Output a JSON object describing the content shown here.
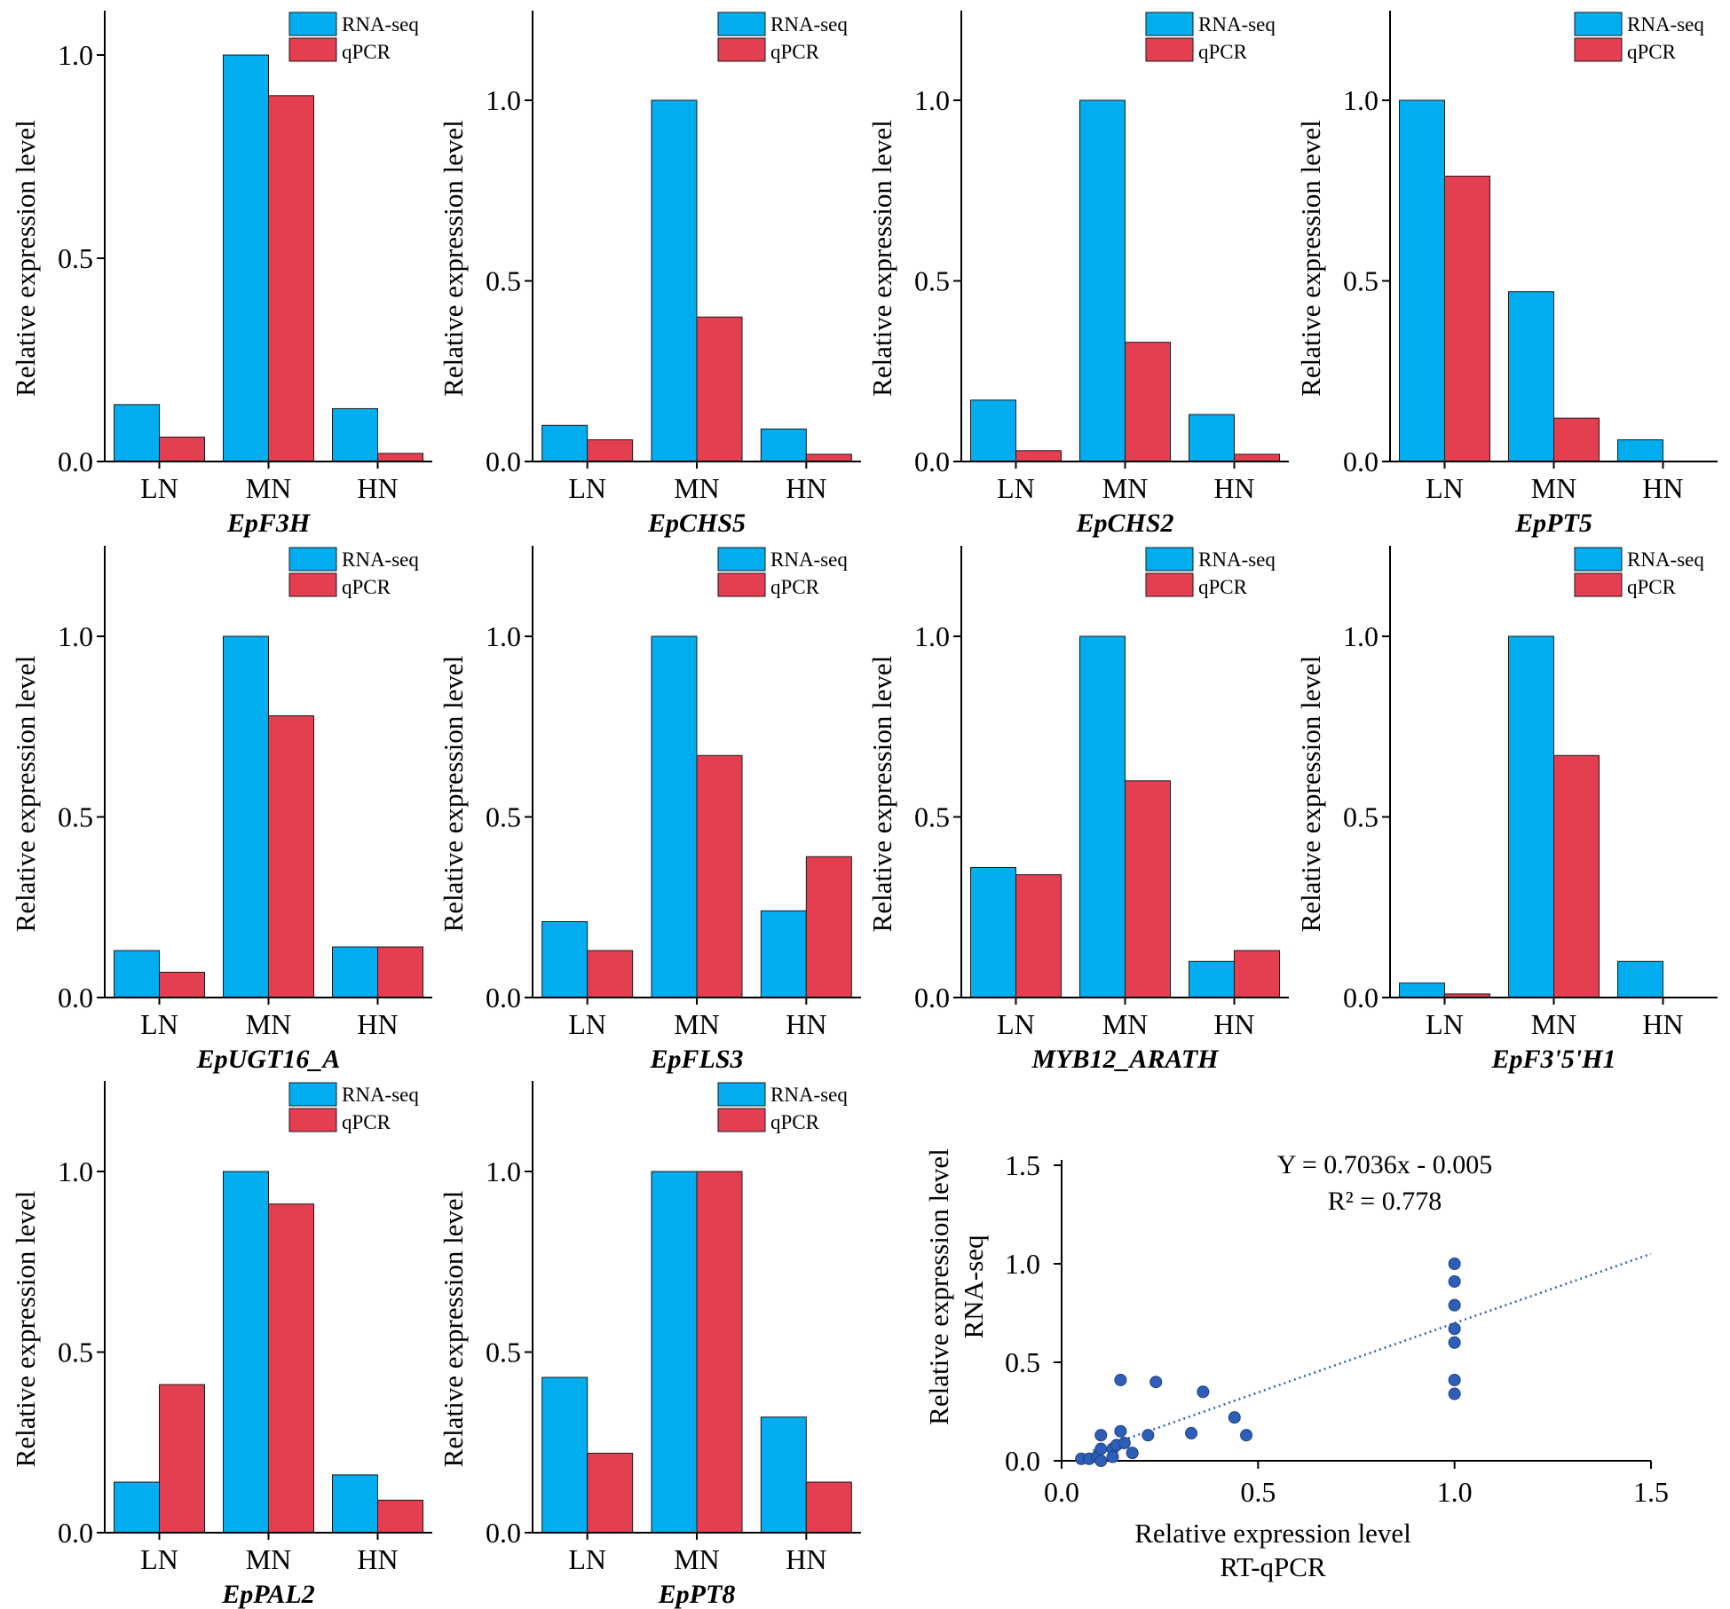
{
  "colors": {
    "rna": "#00ADEF",
    "qpcr": "#E43F51",
    "point": "#2E5FB8",
    "axis": "#000000"
  },
  "legend": {
    "rna": "RNA-seq",
    "qpcr": "qPCR"
  },
  "chart_data": [
    {
      "type": "bar",
      "title": "EpF3H",
      "ylabel": "Relative expression level",
      "categories": [
        "LN",
        "MN",
        "HN"
      ],
      "ylim": [
        0,
        1.1
      ],
      "yticks": [
        "0.0",
        "0.5",
        "1.0"
      ],
      "series": [
        {
          "name": "RNA-seq",
          "values": [
            0.14,
            1.0,
            0.13
          ]
        },
        {
          "name": "qPCR",
          "values": [
            0.06,
            0.9,
            0.02
          ]
        }
      ]
    },
    {
      "type": "bar",
      "title": "EpCHS5",
      "ylabel": "Relative expression level",
      "categories": [
        "LN",
        "MN",
        "HN"
      ],
      "ylim": [
        0,
        1.25
      ],
      "yticks": [
        "0.0",
        "0.5",
        "1.0"
      ],
      "series": [
        {
          "name": "RNA-seq",
          "values": [
            0.1,
            1.0,
            0.09
          ]
        },
        {
          "name": "qPCR",
          "values": [
            0.06,
            0.4,
            0.02
          ]
        }
      ]
    },
    {
      "type": "bar",
      "title": "EpCHS2",
      "ylabel": "Relative expression level",
      "categories": [
        "LN",
        "MN",
        "HN"
      ],
      "ylim": [
        0,
        1.25
      ],
      "yticks": [
        "0.0",
        "0.5",
        "1.0"
      ],
      "series": [
        {
          "name": "RNA-seq",
          "values": [
            0.17,
            1.0,
            0.13
          ]
        },
        {
          "name": "qPCR",
          "values": [
            0.03,
            0.33,
            0.02
          ]
        }
      ]
    },
    {
      "type": "bar",
      "title": "EpPT5",
      "ylabel": "Relative expression level",
      "categories": [
        "LN",
        "MN",
        "HN"
      ],
      "ylim": [
        0,
        1.25
      ],
      "yticks": [
        "0.0",
        "0.5",
        "1.0"
      ],
      "series": [
        {
          "name": "RNA-seq",
          "values": [
            1.0,
            0.47,
            0.06
          ]
        },
        {
          "name": "qPCR",
          "values": [
            0.79,
            0.12,
            0.0
          ]
        }
      ]
    },
    {
      "type": "bar",
      "title": "EpUGT16_A",
      "ylabel": "Relative expression level",
      "categories": [
        "LN",
        "MN",
        "HN"
      ],
      "ylim": [
        0,
        1.25
      ],
      "yticks": [
        "0.0",
        "0.5",
        "1.0"
      ],
      "series": [
        {
          "name": "RNA-seq",
          "values": [
            0.13,
            1.0,
            0.14
          ]
        },
        {
          "name": "qPCR",
          "values": [
            0.07,
            0.78,
            0.14
          ]
        }
      ]
    },
    {
      "type": "bar",
      "title": "EpFLS3",
      "ylabel": "Relative expression level",
      "categories": [
        "LN",
        "MN",
        "HN"
      ],
      "ylim": [
        0,
        1.25
      ],
      "yticks": [
        "0.0",
        "0.5",
        "1.0"
      ],
      "series": [
        {
          "name": "RNA-seq",
          "values": [
            0.21,
            1.0,
            0.24
          ]
        },
        {
          "name": "qPCR",
          "values": [
            0.13,
            0.67,
            0.39
          ]
        }
      ]
    },
    {
      "type": "bar",
      "title": "MYB12_ARATH",
      "ylabel": "Relative expression level",
      "categories": [
        "LN",
        "MN",
        "HN"
      ],
      "ylim": [
        0,
        1.25
      ],
      "yticks": [
        "0.0",
        "0.5",
        "1.0"
      ],
      "series": [
        {
          "name": "RNA-seq",
          "values": [
            0.36,
            1.0,
            0.1
          ]
        },
        {
          "name": "qPCR",
          "values": [
            0.34,
            0.6,
            0.13
          ]
        }
      ]
    },
    {
      "type": "bar",
      "title": "EpF3'5'H1",
      "ylabel": "Relative expression level",
      "categories": [
        "LN",
        "MN",
        "HN"
      ],
      "ylim": [
        0,
        1.25
      ],
      "yticks": [
        "0.0",
        "0.5",
        "1.0"
      ],
      "series": [
        {
          "name": "RNA-seq",
          "values": [
            0.04,
            1.0,
            0.1
          ]
        },
        {
          "name": "qPCR",
          "values": [
            0.01,
            0.67,
            0.0
          ]
        }
      ]
    },
    {
      "type": "bar",
      "title": "EpPAL2",
      "ylabel": "Relative expression level",
      "categories": [
        "LN",
        "MN",
        "HN"
      ],
      "ylim": [
        0,
        1.25
      ],
      "yticks": [
        "0.0",
        "0.5",
        "1.0"
      ],
      "series": [
        {
          "name": "RNA-seq",
          "values": [
            0.14,
            1.0,
            0.16
          ]
        },
        {
          "name": "qPCR",
          "values": [
            0.41,
            0.91,
            0.09
          ]
        }
      ]
    },
    {
      "type": "bar",
      "title": "EpPT8",
      "ylabel": "Relative expression level",
      "categories": [
        "LN",
        "MN",
        "HN"
      ],
      "ylim": [
        0,
        1.25
      ],
      "yticks": [
        "0.0",
        "0.5",
        "1.0"
      ],
      "series": [
        {
          "name": "RNA-seq",
          "values": [
            0.43,
            1.0,
            0.32
          ]
        },
        {
          "name": "qPCR",
          "values": [
            0.22,
            1.0,
            0.14
          ]
        }
      ]
    },
    {
      "type": "scatter",
      "title": "",
      "equation": "Y = 0.7036x - 0.005",
      "r2": "R² = 0.778",
      "xlabel": "Relative  expression level",
      "xlabel2": "RT-qPCR",
      "ylabel": "Relative  expression level",
      "ylabel2": "RNA-seq",
      "xlim": [
        0,
        1.5
      ],
      "ylim": [
        0,
        1.5
      ],
      "xticks": [
        "0.0",
        "0.5",
        "1.0",
        "1.5"
      ],
      "yticks": [
        "0.0",
        "0.5",
        "1.0",
        "1.5"
      ],
      "trendline": {
        "slope": 0.7036,
        "intercept": -0.005,
        "x_range": [
          0,
          1.5
        ]
      },
      "points": [
        [
          0.05,
          0.01
        ],
        [
          0.07,
          0.01
        ],
        [
          0.09,
          0.02
        ],
        [
          0.1,
          0.0
        ],
        [
          0.1,
          0.06
        ],
        [
          0.1,
          0.13
        ],
        [
          0.13,
          0.06
        ],
        [
          0.13,
          0.02
        ],
        [
          0.14,
          0.08
        ],
        [
          0.15,
          0.41
        ],
        [
          0.15,
          0.15
        ],
        [
          0.16,
          0.09
        ],
        [
          0.18,
          0.04
        ],
        [
          0.22,
          0.13
        ],
        [
          0.24,
          0.4
        ],
        [
          0.33,
          0.14
        ],
        [
          0.36,
          0.35
        ],
        [
          0.44,
          0.22
        ],
        [
          0.47,
          0.13
        ],
        [
          1.0,
          1.0
        ],
        [
          1.0,
          0.91
        ],
        [
          1.0,
          0.79
        ],
        [
          1.0,
          0.67
        ],
        [
          1.0,
          0.6
        ],
        [
          1.0,
          0.41
        ],
        [
          1.0,
          0.34
        ]
      ]
    }
  ]
}
